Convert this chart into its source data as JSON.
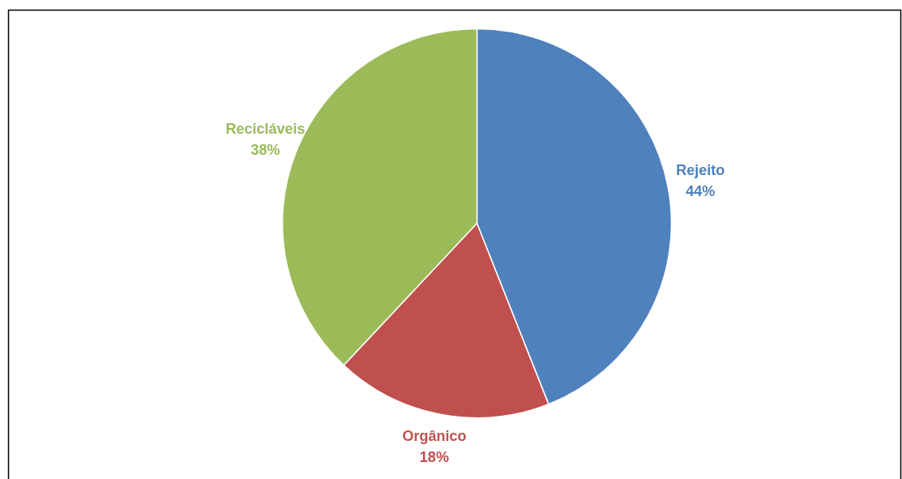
{
  "chart_data": {
    "type": "pie",
    "categories": [
      "Rejeito",
      "Orgânico",
      "Recicláveis"
    ],
    "values": [
      44,
      18,
      38
    ],
    "colors": [
      "#4f81bd",
      "#c0504d",
      "#9bbb59"
    ],
    "value_labels": [
      "44%",
      "18%",
      "38%"
    ]
  }
}
